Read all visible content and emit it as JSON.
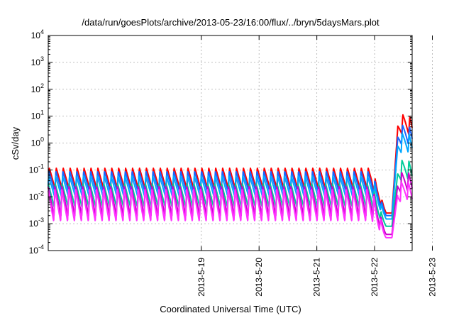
{
  "chart_data": {
    "type": "line",
    "title": "/data/run/goesPlots/archive/2013-05-23/16:00/flux/../bryn/5daysMars.plot",
    "xlabel": "Coordinated Universal Time (UTC)",
    "ylabel": "cSv/day",
    "yscale": "log",
    "ylim": [
      0.0001,
      10000
    ],
    "y_ticks": [
      {
        "value": 0.0001,
        "base": "10",
        "exp": "-4"
      },
      {
        "value": 0.001,
        "base": "10",
        "exp": "-3"
      },
      {
        "value": 0.01,
        "base": "10",
        "exp": "-2"
      },
      {
        "value": 0.1,
        "base": "10",
        "exp": "-1"
      },
      {
        "value": 1,
        "base": "10",
        "exp": "0"
      },
      {
        "value": 10,
        "base": "10",
        "exp": "1"
      },
      {
        "value": 100,
        "base": "10",
        "exp": "2"
      },
      {
        "value": 1000,
        "base": "10",
        "exp": "3"
      },
      {
        "value": 10000,
        "base": "10",
        "exp": "4"
      }
    ],
    "xlim_days": [
      -1.65,
      4.65
    ],
    "x_ticks": [
      {
        "day": 1,
        "label": "2013-5-19"
      },
      {
        "day": 2,
        "label": "2013-5-20"
      },
      {
        "day": 3,
        "label": "2013-5-21"
      },
      {
        "day": 4,
        "label": "2013-5-22"
      },
      {
        "day": 5,
        "label": "2013-5-23"
      }
    ],
    "grid": true,
    "sawtooth_period_days": 0.12,
    "series": [
      {
        "color": "#ff0000",
        "peak": 0.12,
        "trough": 0.02,
        "low_min": 0.0025,
        "event_peak": 12
      },
      {
        "color": "#1a66ff",
        "peak": 0.09,
        "trough": 0.015,
        "low_min": 0.002,
        "event_peak": 5
      },
      {
        "color": "#00a8ff",
        "peak": 0.06,
        "trough": 0.01,
        "low_min": 0.0015,
        "event_peak": 2.5
      },
      {
        "color": "#00cc99",
        "peak": 0.03,
        "trough": 0.004,
        "low_min": 0.0008,
        "event_peak": 0.25
      },
      {
        "color": "#cc00cc",
        "peak": 0.025,
        "trough": 0.002,
        "low_min": 0.0004,
        "event_peak": 0.09
      },
      {
        "color": "#ff33ff",
        "peak": 0.02,
        "trough": 0.0012,
        "low_min": 0.0003,
        "event_peak": 0.04
      }
    ]
  }
}
